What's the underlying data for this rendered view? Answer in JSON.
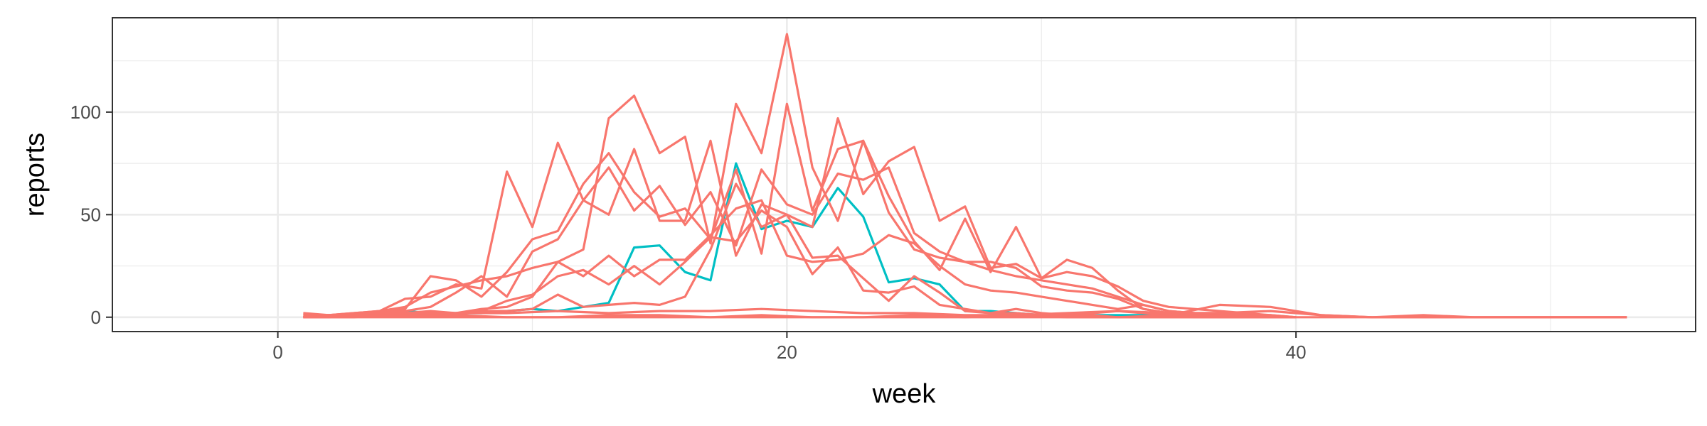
{
  "chart_data": {
    "type": "line",
    "title": "",
    "xlabel": "week",
    "ylabel": "reports",
    "xlim": [
      -6.5,
      55.7
    ],
    "ylim": [
      -7,
      146
    ],
    "x_ticks": [
      0,
      20,
      40
    ],
    "x_ticklabels": [
      "0",
      "20",
      "40"
    ],
    "x_minor_ticks": [
      10,
      30,
      50
    ],
    "y_ticks": [
      0,
      50,
      100
    ],
    "y_ticklabels": [
      "0",
      "50",
      "100"
    ],
    "y_minor_ticks": [
      25,
      75,
      125
    ],
    "grid": true,
    "legend": "none",
    "colors": {
      "red": "#F8766D",
      "teal": "#00BFC4",
      "grid": "#EBEBEB",
      "panel_border": "#333333",
      "tick_text": "#4D4D4D"
    },
    "series": [
      {
        "color": "#00BFC4",
        "x": [
          1,
          2,
          3,
          4,
          5,
          6,
          7,
          8,
          9,
          10,
          11,
          12,
          13,
          14,
          15,
          16,
          17,
          18,
          19,
          20,
          21,
          22,
          23,
          24,
          25,
          26,
          27,
          28,
          29,
          30,
          31,
          32,
          33,
          34,
          35,
          36,
          37,
          38,
          39,
          40
        ],
        "y": [
          0,
          1,
          1,
          2,
          3,
          2,
          2,
          2,
          3,
          4,
          3,
          5,
          7,
          34,
          35,
          22,
          18,
          75,
          43,
          47,
          44,
          63,
          49,
          17,
          19,
          16,
          3,
          3,
          2,
          1,
          1,
          1,
          1,
          1,
          1,
          1,
          0,
          0,
          0,
          0
        ]
      },
      {
        "color": "#F8766D",
        "x": [
          1,
          2,
          3,
          4,
          5,
          6,
          7,
          8,
          9,
          10,
          11,
          12,
          13,
          14,
          15,
          16,
          17,
          18,
          19,
          20,
          21,
          22,
          23,
          24,
          25,
          26,
          27,
          28,
          29,
          30,
          31,
          32,
          33,
          34,
          35,
          36,
          37,
          38,
          39,
          40
        ],
        "y": [
          2,
          1,
          2,
          3,
          9,
          10,
          16,
          14,
          71,
          44,
          85,
          57,
          50,
          82,
          47,
          47,
          86,
          30,
          55,
          50,
          44,
          97,
          60,
          76,
          83,
          47,
          54,
          24,
          26,
          19,
          22,
          20,
          15,
          8,
          5,
          4,
          3,
          2,
          1,
          0
        ]
      },
      {
        "color": "#F8766D",
        "x": [
          1,
          2,
          3,
          4,
          5,
          6,
          7,
          8,
          9,
          10,
          11,
          12,
          13,
          14,
          15,
          16,
          17,
          18,
          19,
          20,
          21,
          22,
          23,
          24,
          25,
          26,
          27,
          28,
          29,
          30,
          31,
          32,
          33,
          34,
          35,
          36,
          37,
          38,
          39,
          40
        ],
        "y": [
          1,
          1,
          2,
          3,
          5,
          12,
          15,
          18,
          20,
          24,
          27,
          33,
          97,
          108,
          80,
          88,
          36,
          104,
          80,
          138,
          73,
          47,
          86,
          59,
          37,
          23,
          48,
          22,
          44,
          19,
          28,
          24,
          13,
          4,
          2,
          2,
          2,
          1,
          0,
          0
        ]
      },
      {
        "color": "#F8766D",
        "x": [
          1,
          2,
          3,
          4,
          5,
          6,
          7,
          8,
          9,
          10,
          11,
          12,
          13,
          14,
          15,
          16,
          17,
          18,
          19,
          20,
          21,
          22,
          23,
          24,
          25,
          26,
          27,
          28,
          29,
          30,
          31,
          32,
          33,
          34,
          35,
          36,
          37,
          38,
          39,
          40
        ],
        "y": [
          0,
          1,
          1,
          2,
          4,
          20,
          18,
          10,
          22,
          38,
          42,
          65,
          80,
          61,
          49,
          53,
          38,
          72,
          31,
          104,
          52,
          82,
          86,
          51,
          33,
          29,
          27,
          27,
          24,
          15,
          13,
          12,
          9,
          4,
          2,
          1,
          1,
          1,
          0,
          0
        ]
      },
      {
        "color": "#F8766D",
        "x": [
          1,
          2,
          3,
          4,
          5,
          6,
          7,
          8,
          9,
          10,
          11,
          12,
          13,
          14,
          15,
          16,
          17,
          18,
          19,
          20,
          21,
          22,
          23,
          24,
          25,
          26,
          27,
          28,
          29,
          30,
          31,
          32,
          33,
          34,
          35,
          36,
          37,
          38,
          39,
          40
        ],
        "y": [
          0,
          1,
          1,
          2,
          3,
          5,
          12,
          20,
          10,
          32,
          38,
          57,
          73,
          52,
          64,
          45,
          61,
          35,
          72,
          55,
          50,
          70,
          67,
          73,
          41,
          32,
          27,
          23,
          20,
          18,
          16,
          14,
          10,
          6,
          3,
          2,
          1,
          0,
          0,
          0
        ]
      },
      {
        "color": "#F8766D",
        "x": [
          1,
          2,
          3,
          4,
          5,
          6,
          7,
          8,
          9,
          10,
          11,
          12,
          13,
          14,
          15,
          16,
          17,
          18,
          19,
          20,
          21,
          22,
          23,
          24,
          25,
          26,
          27,
          28,
          29,
          30,
          31,
          32,
          33,
          34,
          35,
          36,
          37,
          38,
          39,
          40
        ],
        "y": [
          0,
          0,
          1,
          1,
          2,
          3,
          2,
          4,
          5,
          10,
          27,
          20,
          30,
          20,
          28,
          28,
          40,
          53,
          57,
          30,
          27,
          28,
          31,
          40,
          36,
          25,
          16,
          13,
          12,
          10,
          8,
          6,
          4,
          6,
          3,
          2,
          2,
          1,
          1,
          0
        ]
      },
      {
        "color": "#F8766D",
        "x": [
          1,
          2,
          3,
          4,
          5,
          6,
          7,
          8,
          9,
          10,
          11,
          12,
          13,
          14,
          15,
          16,
          17,
          18,
          19,
          20,
          21,
          22,
          23,
          24,
          25,
          26,
          27,
          28,
          29,
          30,
          31,
          32,
          33,
          34,
          35,
          36,
          37,
          38,
          39,
          40
        ],
        "y": [
          0,
          0,
          1,
          1,
          2,
          2,
          1,
          3,
          8,
          11,
          20,
          23,
          16,
          25,
          16,
          27,
          39,
          37,
          52,
          44,
          21,
          34,
          13,
          12,
          15,
          6,
          4,
          2,
          4,
          2,
          1,
          2,
          3,
          2,
          1,
          0,
          0,
          0,
          0,
          0
        ]
      },
      {
        "color": "#F8766D",
        "x": [
          1,
          2,
          3,
          4,
          5,
          6,
          7,
          8,
          9,
          10,
          11,
          12,
          13,
          14,
          15,
          16,
          17,
          18,
          19,
          20,
          21,
          22,
          23,
          24,
          25,
          26,
          27,
          28,
          29,
          30,
          31,
          32,
          33,
          34,
          35,
          36,
          37,
          38,
          39,
          40
        ],
        "y": [
          0,
          0,
          0,
          1,
          1,
          1,
          2,
          3,
          3,
          4,
          11,
          5,
          6,
          7,
          6,
          10,
          33,
          65,
          44,
          50,
          29,
          30,
          19,
          8,
          20,
          12,
          3,
          2,
          2,
          1,
          1,
          1,
          0,
          0,
          0,
          0,
          0,
          0,
          0,
          0
        ]
      },
      {
        "color": "#F8766D",
        "x": [
          1,
          3,
          5,
          7,
          9,
          11,
          13,
          15,
          17,
          19,
          21,
          23,
          25,
          27,
          29,
          31,
          33,
          35,
          37,
          39,
          41,
          43,
          45,
          47,
          49,
          51,
          53
        ],
        "y": [
          1,
          1,
          1,
          2,
          2,
          3,
          2,
          3,
          3,
          4,
          3,
          2,
          2,
          1,
          1,
          2,
          3,
          2,
          2,
          3,
          1,
          0,
          1,
          0,
          0,
          0,
          0
        ]
      },
      {
        "color": "#F8766D",
        "x": [
          1,
          3,
          5,
          7,
          9,
          11,
          13,
          15,
          17,
          19,
          21,
          23,
          25,
          27,
          29,
          31,
          33,
          35,
          37,
          39,
          41,
          43,
          45,
          47,
          49,
          51,
          53
        ],
        "y": [
          0,
          1,
          1,
          1,
          0,
          0,
          1,
          1,
          0,
          1,
          0,
          0,
          1,
          0,
          1,
          0,
          0,
          1,
          6,
          5,
          1,
          0,
          0,
          0,
          0,
          0,
          0
        ]
      },
      {
        "color": "#F8766D",
        "x": [
          1,
          53
        ],
        "y": [
          0,
          0
        ]
      }
    ]
  }
}
